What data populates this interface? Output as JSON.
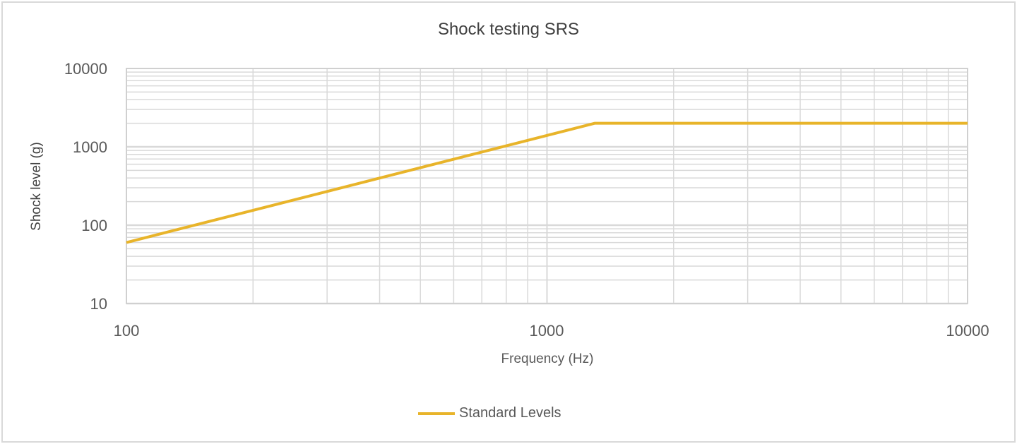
{
  "chart_data": {
    "type": "line",
    "title": "Shock testing SRS",
    "xlabel": "Frequency (Hz)",
    "ylabel": "Shock level (g)",
    "xscale": "log",
    "yscale": "log",
    "xlim": [
      100,
      10000
    ],
    "ylim": [
      10,
      10000
    ],
    "x_ticks": [
      "100",
      "1000",
      "10000"
    ],
    "y_ticks": [
      "10000",
      "1000",
      "100",
      "10"
    ],
    "grid": true,
    "legend_position": "bottom",
    "series": [
      {
        "name": "Standard Levels",
        "color": "#e8b42a",
        "x": [
          100,
          1300,
          10000
        ],
        "y": [
          60,
          2000,
          2000
        ]
      }
    ]
  },
  "colors": {
    "series": "#e8b42a",
    "grid": "#d9d9d9",
    "text": "#595959"
  }
}
